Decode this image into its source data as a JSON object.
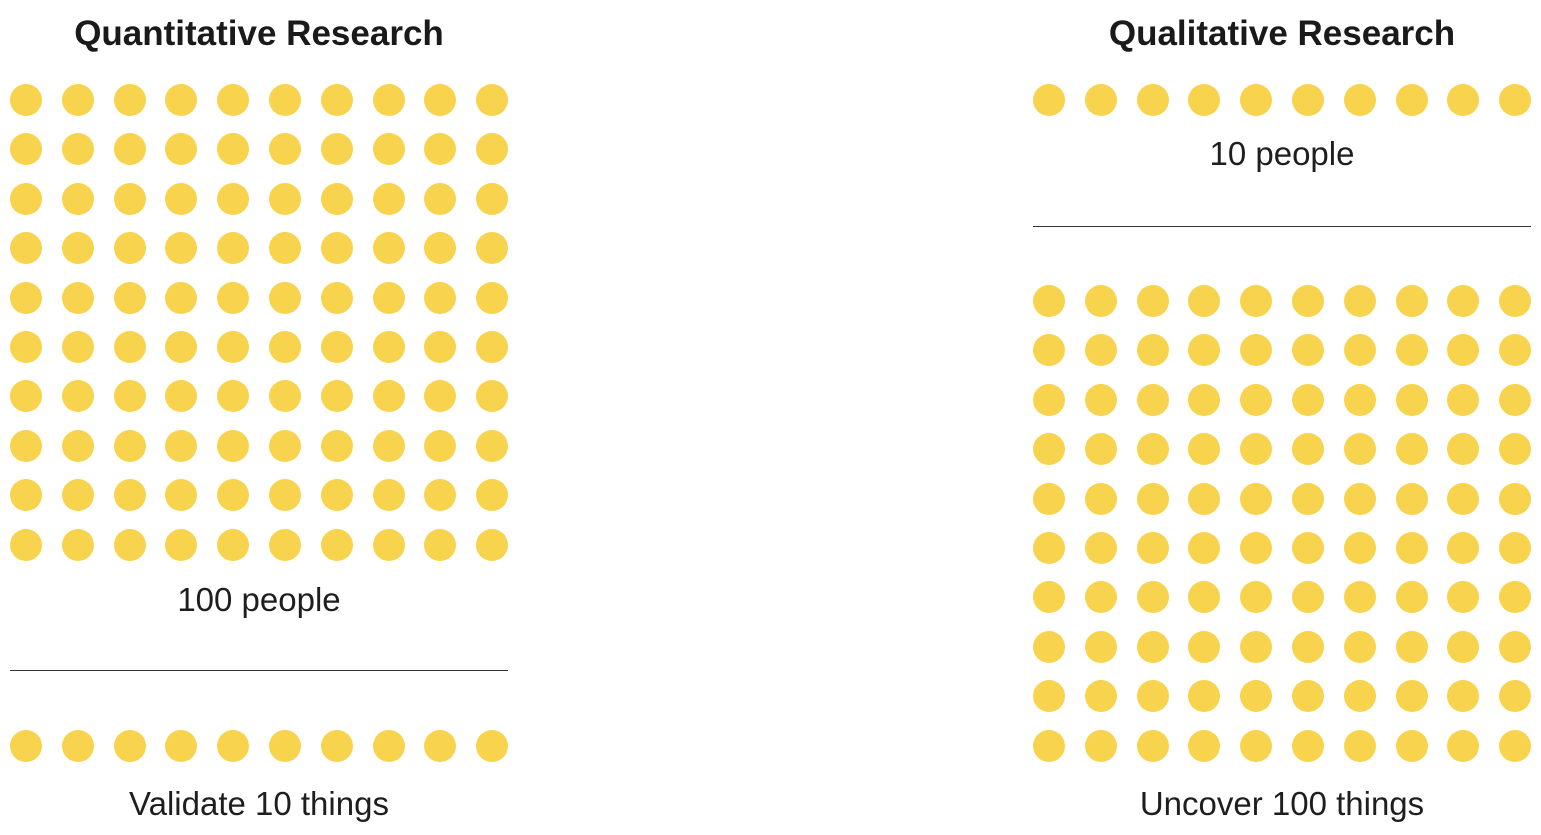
{
  "colors": {
    "dot": "#f8d34d",
    "text": "#1a1a1a",
    "divider": "#333333"
  },
  "quantitative": {
    "title": "Quantitative Research",
    "people_count": 100,
    "people_label": "100 people",
    "things_count": 10,
    "things_label": "Validate 10 things"
  },
  "qualitative": {
    "title": "Qualitative Research",
    "people_count": 10,
    "people_label": "10 people",
    "things_count": 100,
    "things_label": "Uncover 100 things"
  }
}
